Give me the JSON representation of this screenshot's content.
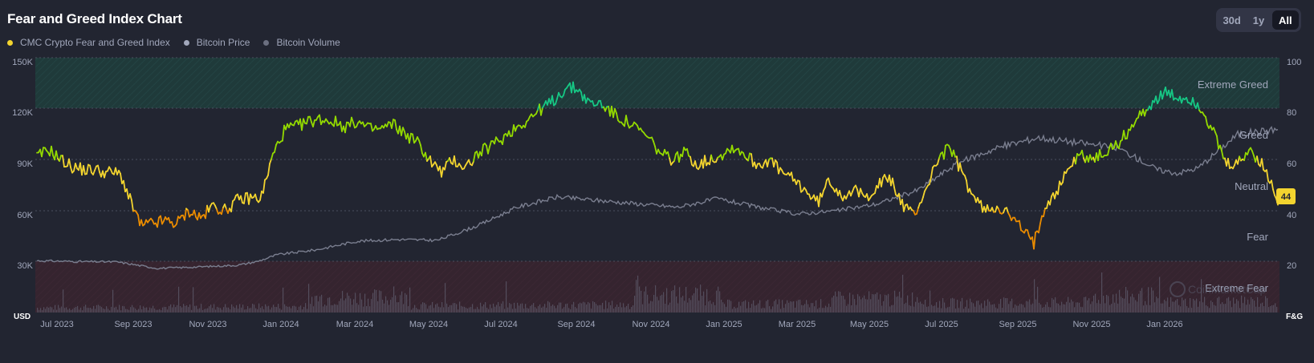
{
  "header": {
    "title": "Fear and Greed Index Chart"
  },
  "range_buttons": [
    {
      "label": "30d",
      "active": false
    },
    {
      "label": "1y",
      "active": false
    },
    {
      "label": "All",
      "active": true
    }
  ],
  "legend": [
    {
      "label": "CMC Crypto Fear and Greed Index",
      "color": "#f3d42f"
    },
    {
      "label": "Bitcoin Price",
      "color": "#a1a7bb"
    },
    {
      "label": "Bitcoin Volume",
      "color": "#6b6f80"
    }
  ],
  "watermark": "CoinMarketCap",
  "chart_data": {
    "type": "line",
    "left_axis": {
      "unit": "USD",
      "ylim": [
        0,
        150000
      ],
      "tick_labels": [
        "30K",
        "60K",
        "90K",
        "120K",
        "150K"
      ]
    },
    "right_axis": {
      "unit": "F&G",
      "ylim": [
        0,
        100
      ],
      "tick_labels": [
        "20",
        "40",
        "60",
        "80",
        "100"
      ]
    },
    "x_tick_labels": [
      "Jul 2023",
      "Sep 2023",
      "Nov 2023",
      "Jan 2024",
      "Mar 2024",
      "May 2024",
      "Jul 2024",
      "Sep 2024",
      "Nov 2024",
      "Jan 2025",
      "Mar 2025",
      "May 2025",
      "Jul 2025",
      "Sep 2025",
      "Nov 2025",
      "Jan 2026"
    ],
    "zones": [
      {
        "label": "Extreme Greed",
        "range": [
          80,
          100
        ],
        "color": "#16c784"
      },
      {
        "label": "Greed",
        "range": [
          60,
          80
        ],
        "color": "#93d900"
      },
      {
        "label": "Neutral",
        "range": [
          40,
          60
        ],
        "color": "#f3d42f"
      },
      {
        "label": "Fear",
        "range": [
          20,
          40
        ],
        "color": "#ea8c00"
      },
      {
        "label": "Extreme Fear",
        "range": [
          0,
          20
        ],
        "color": "#ea3943"
      }
    ],
    "x_range": [
      0,
      31
    ],
    "current_index": {
      "value": "44"
    },
    "series": [
      {
        "name": "CMC Crypto Fear and Greed Index",
        "axis": "right",
        "points": [
          [
            0.0,
            61
          ],
          [
            0.3,
            64
          ],
          [
            0.6,
            60
          ],
          [
            0.9,
            57
          ],
          [
            1.2,
            56
          ],
          [
            1.5,
            56
          ],
          [
            1.7,
            55
          ],
          [
            1.9,
            55
          ],
          [
            2.1,
            54
          ],
          [
            2.3,
            45
          ],
          [
            2.6,
            34
          ],
          [
            2.9,
            35
          ],
          [
            3.2,
            36
          ],
          [
            3.5,
            35
          ],
          [
            3.8,
            40
          ],
          [
            4.1,
            37
          ],
          [
            4.4,
            42
          ],
          [
            4.7,
            40
          ],
          [
            5.0,
            44
          ],
          [
            5.3,
            45
          ],
          [
            5.6,
            45
          ],
          [
            5.9,
            62
          ],
          [
            6.2,
            72
          ],
          [
            6.5,
            73
          ],
          [
            6.8,
            75
          ],
          [
            7.1,
            76
          ],
          [
            7.4,
            75
          ],
          [
            7.7,
            73
          ],
          [
            8.0,
            75
          ],
          [
            8.3,
            72
          ],
          [
            8.6,
            72
          ],
          [
            8.9,
            74
          ],
          [
            9.2,
            70
          ],
          [
            9.5,
            67
          ],
          [
            9.8,
            60
          ],
          [
            10.1,
            55
          ],
          [
            10.4,
            60
          ],
          [
            10.7,
            57
          ],
          [
            11.0,
            62
          ],
          [
            11.3,
            65
          ],
          [
            11.6,
            68
          ],
          [
            11.9,
            72
          ],
          [
            12.2,
            75
          ],
          [
            12.6,
            80
          ],
          [
            12.9,
            83
          ],
          [
            13.2,
            88
          ],
          [
            13.5,
            88
          ],
          [
            13.8,
            82
          ],
          [
            14.1,
            82
          ],
          [
            14.4,
            78
          ],
          [
            14.7,
            75
          ],
          [
            15.0,
            72
          ],
          [
            15.3,
            68
          ],
          [
            15.6,
            62
          ],
          [
            15.9,
            60
          ],
          [
            16.2,
            63
          ],
          [
            16.5,
            58
          ],
          [
            16.8,
            60
          ],
          [
            17.1,
            62
          ],
          [
            17.4,
            65
          ],
          [
            17.7,
            62
          ],
          [
            18.0,
            58
          ],
          [
            18.3,
            60
          ],
          [
            18.6,
            55
          ],
          [
            18.9,
            52
          ],
          [
            19.2,
            48
          ],
          [
            19.5,
            43
          ],
          [
            19.8,
            52
          ],
          [
            20.1,
            46
          ],
          [
            20.4,
            48
          ],
          [
            20.7,
            45
          ],
          [
            21.0,
            50
          ],
          [
            21.3,
            53
          ],
          [
            21.6,
            43
          ],
          [
            21.9,
            38
          ],
          [
            22.2,
            48
          ],
          [
            22.5,
            60
          ],
          [
            22.8,
            65
          ],
          [
            23.1,
            55
          ],
          [
            23.4,
            45
          ],
          [
            23.7,
            40
          ],
          [
            24.0,
            42
          ],
          [
            24.3,
            38
          ],
          [
            24.6,
            33
          ],
          [
            24.9,
            27
          ],
          [
            25.2,
            43
          ],
          [
            25.5,
            48
          ],
          [
            25.8,
            58
          ],
          [
            26.1,
            62
          ],
          [
            26.4,
            60
          ],
          [
            26.7,
            63
          ],
          [
            27.0,
            66
          ],
          [
            27.3,
            72
          ],
          [
            27.6,
            78
          ],
          [
            27.9,
            83
          ],
          [
            28.2,
            86
          ],
          [
            28.5,
            84
          ],
          [
            28.8,
            84
          ],
          [
            29.1,
            80
          ],
          [
            29.4,
            70
          ],
          [
            29.7,
            58
          ],
          [
            30.0,
            58
          ],
          [
            30.3,
            64
          ],
          [
            30.6,
            58
          ],
          [
            30.9,
            48
          ],
          [
            31.0,
            44
          ]
        ]
      },
      {
        "name": "Bitcoin Price",
        "axis": "left",
        "points": [
          [
            0.0,
            30500
          ],
          [
            1.0,
            30000
          ],
          [
            2.0,
            29800
          ],
          [
            3.0,
            26000
          ],
          [
            4.0,
            26800
          ],
          [
            5.0,
            27800
          ],
          [
            5.5,
            30000
          ],
          [
            6.0,
            34000
          ],
          [
            7.0,
            37000
          ],
          [
            8.0,
            42000
          ],
          [
            9.0,
            43000
          ],
          [
            10.0,
            42500
          ],
          [
            11.0,
            51000
          ],
          [
            12.0,
            62000
          ],
          [
            13.0,
            68000
          ],
          [
            14.0,
            66000
          ],
          [
            15.0,
            64000
          ],
          [
            16.0,
            62000
          ],
          [
            17.0,
            67000
          ],
          [
            18.0,
            62000
          ],
          [
            19.0,
            58000
          ],
          [
            20.0,
            60000
          ],
          [
            21.0,
            64000
          ],
          [
            22.0,
            72000
          ],
          [
            23.0,
            88000
          ],
          [
            24.0,
            97000
          ],
          [
            25.0,
            103000
          ],
          [
            26.0,
            100000
          ],
          [
            27.0,
            97000
          ],
          [
            28.0,
            84000
          ],
          [
            28.5,
            82000
          ],
          [
            29.0,
            85000
          ],
          [
            29.5,
            95000
          ],
          [
            30.0,
            105000
          ],
          [
            31.0,
            108000
          ]
        ]
      }
    ]
  }
}
